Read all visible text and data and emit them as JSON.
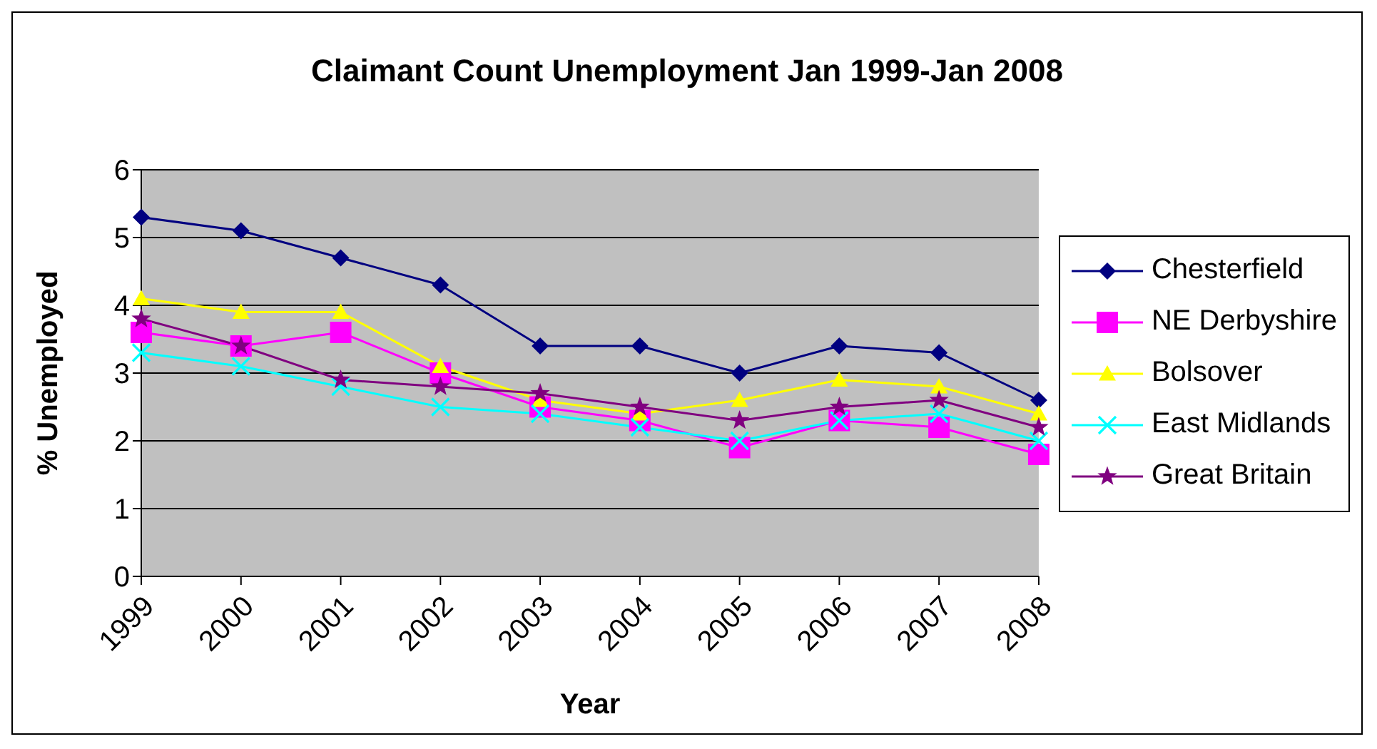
{
  "chart_data": {
    "type": "line",
    "title": "Claimant Count Unemployment Jan 1999-Jan 2008",
    "xlabel": "Year",
    "ylabel": "% Unemployed",
    "categories": [
      "1999",
      "2000",
      "2001",
      "2002",
      "2003",
      "2004",
      "2005",
      "2006",
      "2007",
      "2008"
    ],
    "series": [
      {
        "name": "Chesterfield",
        "color": "#000080",
        "marker": "diamond",
        "values": [
          5.3,
          5.1,
          4.7,
          4.3,
          3.4,
          3.4,
          3.0,
          3.4,
          3.3,
          2.6
        ]
      },
      {
        "name": "NE Derbyshire",
        "color": "#ff00ff",
        "marker": "square",
        "values": [
          3.6,
          3.4,
          3.6,
          3.0,
          2.5,
          2.3,
          1.9,
          2.3,
          2.2,
          1.8
        ]
      },
      {
        "name": "Bolsover",
        "color": "#ffff00",
        "marker": "triangle",
        "values": [
          4.1,
          3.9,
          3.9,
          3.1,
          2.6,
          2.4,
          2.6,
          2.9,
          2.8,
          2.4
        ]
      },
      {
        "name": "East Midlands",
        "color": "#00ffff",
        "marker": "cross",
        "values": [
          3.3,
          3.1,
          2.8,
          2.5,
          2.4,
          2.2,
          2.0,
          2.3,
          2.4,
          2.0
        ]
      },
      {
        "name": "Great Britain",
        "color": "#800080",
        "marker": "star",
        "values": [
          3.8,
          3.4,
          2.9,
          2.8,
          2.7,
          2.5,
          2.3,
          2.5,
          2.6,
          2.2
        ]
      }
    ],
    "ylim": [
      0,
      6
    ],
    "yticks": [
      0,
      1,
      2,
      3,
      4,
      5,
      6
    ],
    "grid": "y",
    "legend": "right",
    "line_style": "solid"
  }
}
